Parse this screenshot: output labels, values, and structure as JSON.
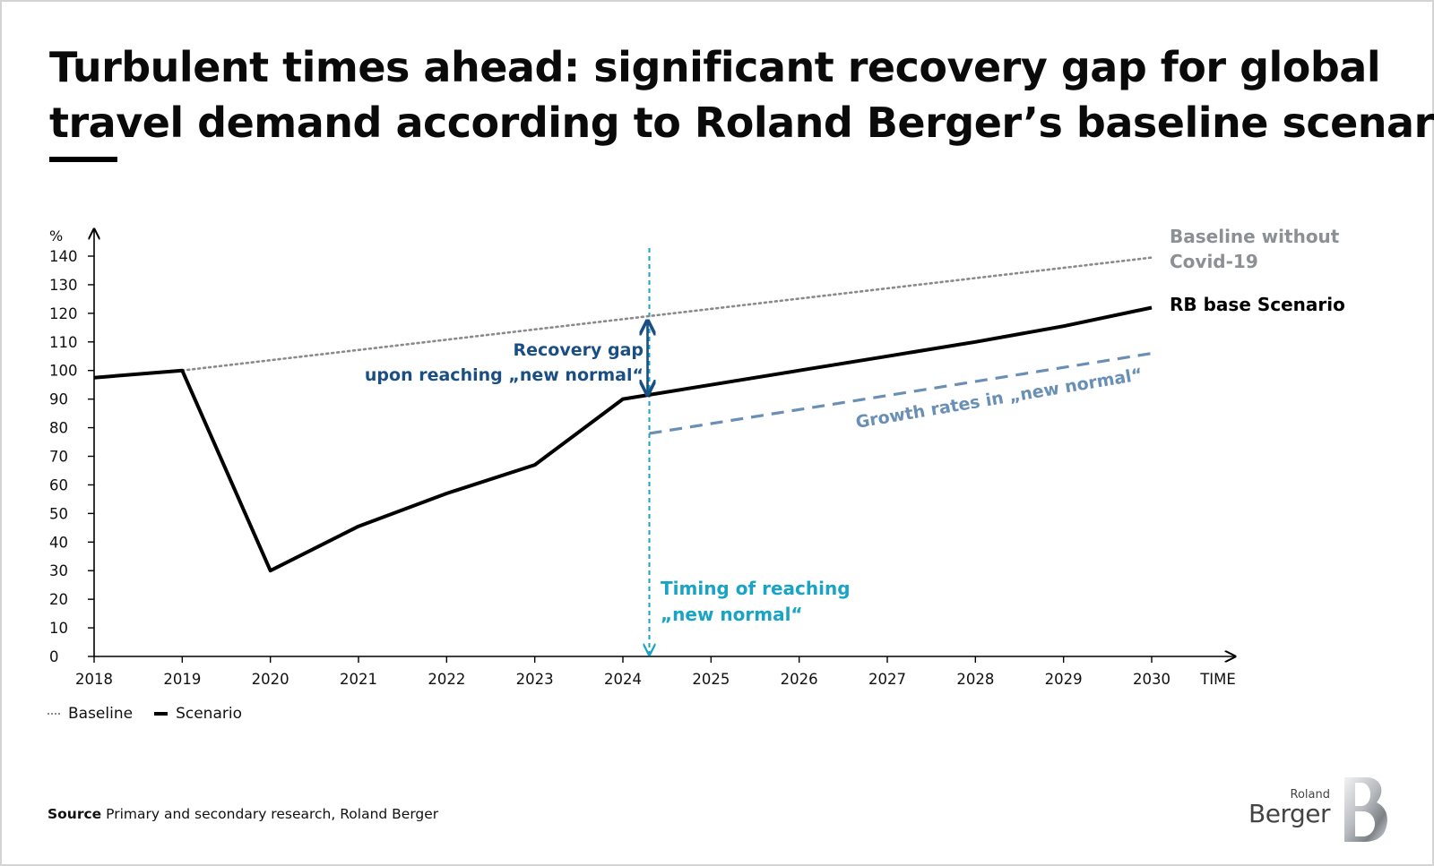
{
  "title_lines": [
    "Turbulent times ahead: significant recovery gap for global",
    "travel demand according to Roland Berger’s baseline scenario"
  ],
  "legend": {
    "baseline": "Baseline",
    "scenario": "Scenario"
  },
  "source": {
    "label": "Source",
    "text": "Primary and secondary research, Roland Berger"
  },
  "logo": {
    "small": "Roland",
    "big": "Berger"
  },
  "colors": {
    "scenario": "#000000",
    "baseline": "#8a8a8a",
    "growth": "#6a8fb4",
    "timing": "#19a4c6",
    "gap": "#1a4f86",
    "axis": "#000000"
  },
  "chart_data": {
    "type": "line",
    "y_unit": "%",
    "x_axis_label": "TIME",
    "xlim": [
      2018,
      2030
    ],
    "ylim": [
      0,
      140
    ],
    "x_ticks": [
      2018,
      2019,
      2020,
      2021,
      2022,
      2023,
      2024,
      2025,
      2026,
      2027,
      2028,
      2029,
      2030
    ],
    "y_ticks": [
      0,
      10,
      20,
      30,
      40,
      50,
      60,
      70,
      80,
      90,
      100,
      110,
      120,
      130,
      140
    ],
    "grid": false,
    "series": [
      {
        "name": "Baseline",
        "style": "dotted",
        "points": [
          [
            2019,
            100
          ],
          [
            2030,
            139.5
          ]
        ]
      },
      {
        "name": "Scenario",
        "style": "solid",
        "points": [
          [
            2018,
            97.5
          ],
          [
            2019,
            100
          ],
          [
            2020,
            30
          ],
          [
            2021,
            45.5
          ],
          [
            2022,
            57
          ],
          [
            2023,
            67
          ],
          [
            2024,
            90
          ],
          [
            2025,
            95
          ],
          [
            2026,
            100
          ],
          [
            2027,
            105
          ],
          [
            2028,
            110
          ],
          [
            2029,
            115.5
          ],
          [
            2030,
            122
          ]
        ]
      },
      {
        "name": "Growth rates in „new normal“",
        "style": "dashed",
        "points": [
          [
            2024.3,
            78
          ],
          [
            2030,
            106
          ]
        ]
      }
    ],
    "annotations": {
      "timing_x": 2024.3,
      "gap_top": 118,
      "gap_bottom": 91,
      "baseline_label": [
        "Baseline without",
        "Covid-19"
      ],
      "scenario_label": "RB base Scenario",
      "gap_label": [
        "Recovery gap",
        "upon reaching „new normal“"
      ],
      "growth_label": "Growth rates in „new normal“",
      "timing_label": [
        "Timing of reaching",
        "„new normal“"
      ]
    }
  }
}
